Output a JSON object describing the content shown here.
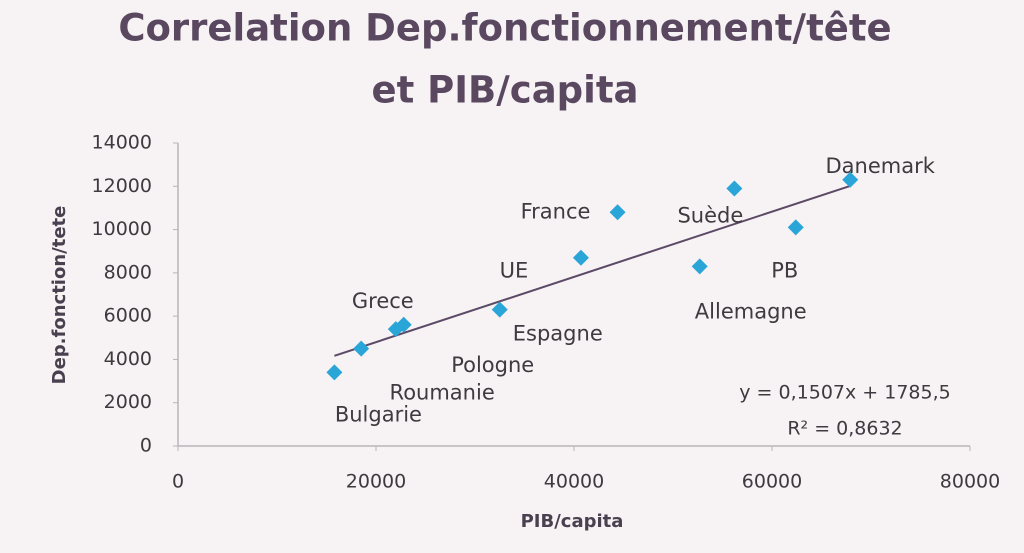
{
  "chart_data": {
    "type": "scatter",
    "title": [
      "Correlation Dep.fonctionnement/tête",
      "et PIB/capita"
    ],
    "x_label": "PIB/capita",
    "y_label": "Dep.fonction/tete",
    "labels": [
      "Bulgarie",
      "Roumanie",
      "Grece",
      "Pologne",
      "Espagne",
      "UE",
      "France",
      "Allemagne",
      "Suède",
      "PB",
      "Danemark"
    ],
    "x": [
      15800,
      18500,
      22000,
      22800,
      32500,
      40700,
      44400,
      52700,
      56200,
      62400,
      67900
    ],
    "values": [
      3400,
      4500,
      5400,
      5600,
      6300,
      8700,
      10800,
      8300,
      11900,
      10100,
      12300
    ],
    "color": "#2aa5d8",
    "xlim": [
      0,
      80000
    ],
    "xticks": [
      0,
      20000,
      40000,
      60000,
      80000
    ],
    "ylim": [
      0,
      14000
    ],
    "yticks": [
      0,
      2000,
      4000,
      6000,
      8000,
      10000,
      12000,
      14000
    ],
    "trendline": {
      "slope": 0.1507,
      "intercept": 1785.5,
      "label": "y = 0,1507x + 1785,5",
      "color": "#5b4a66"
    },
    "r_squared": {
      "value": 0.8632,
      "label": "R² = 0,8632"
    }
  }
}
